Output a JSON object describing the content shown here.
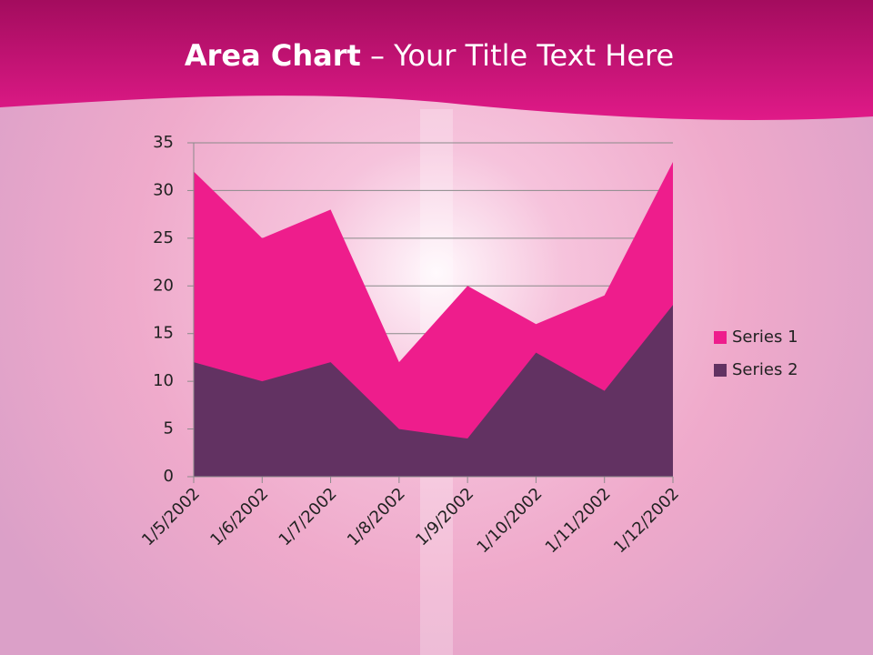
{
  "chart_data": {
    "type": "area",
    "title_parts": [
      "Area Chart",
      "– Your Title Text Here"
    ],
    "categories": [
      "1/5/2002",
      "1/6/2002",
      "1/7/2002",
      "1/8/2002",
      "1/9/2002",
      "1/10/2002",
      "1/11/2002",
      "1/12/2002"
    ],
    "series": [
      {
        "name": "Series 1",
        "color": "#ee1d8c",
        "values": [
          32,
          25,
          28,
          12,
          20,
          16,
          19,
          33
        ]
      },
      {
        "name": "Series 2",
        "color": "#623262",
        "values": [
          12,
          10,
          12,
          5,
          4,
          13,
          9,
          18
        ]
      }
    ],
    "ylim": [
      0,
      35
    ],
    "yticks": [
      0,
      5,
      10,
      15,
      20,
      25,
      30,
      35
    ],
    "grid": true,
    "legend": "right"
  }
}
